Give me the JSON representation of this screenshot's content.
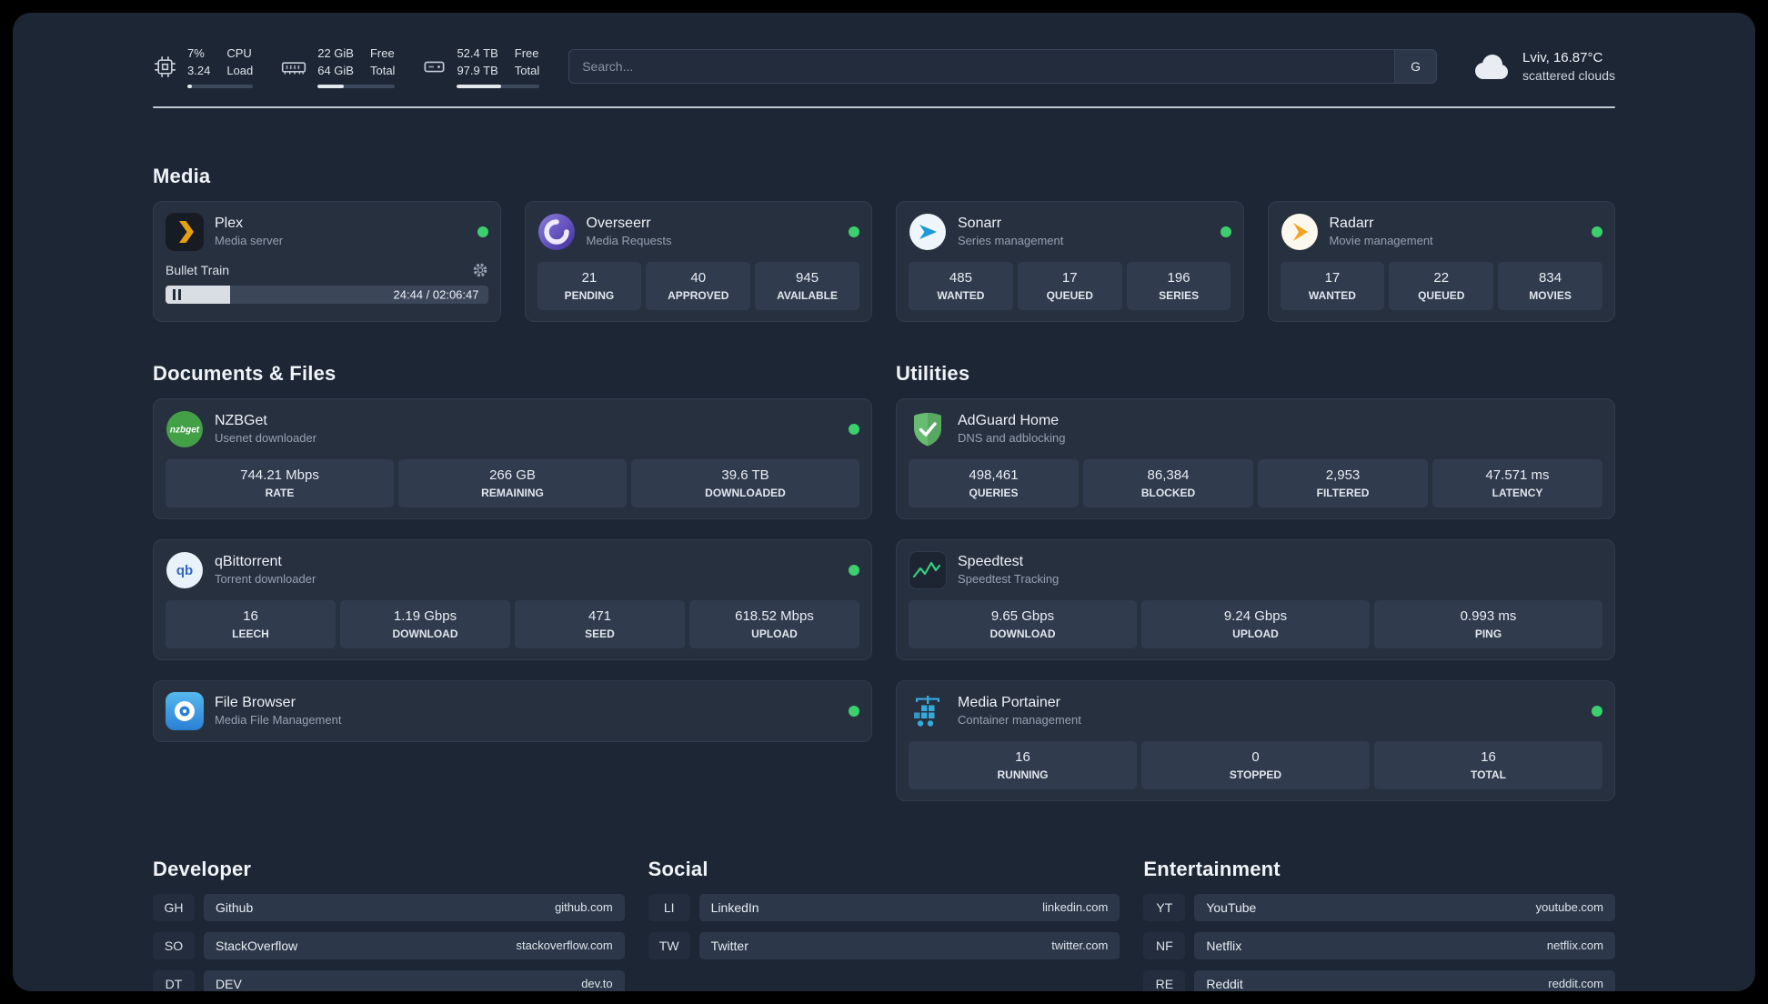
{
  "topbar": {
    "cpu": {
      "value_top": "7%",
      "value_bottom": "3.24",
      "label_top": "CPU",
      "label_bottom": "Load",
      "bar_percent": 7
    },
    "ram": {
      "value_top": "22 GiB",
      "value_bottom": "64 GiB",
      "label_top": "Free",
      "label_bottom": "Total",
      "bar_percent": 34
    },
    "disk": {
      "value_top": "52.4 TB",
      "value_bottom": "97.9 TB",
      "label_top": "Free",
      "label_bottom": "Total",
      "bar_percent": 53
    },
    "search": {
      "placeholder": "Search...",
      "engine_label": "G"
    },
    "weather": {
      "location": "Lviv, 16.87°C",
      "condition": "scattered clouds"
    }
  },
  "media": {
    "title": "Media",
    "plex": {
      "name": "Plex",
      "subtitle": "Media server",
      "now_playing": "Bullet Train",
      "time": "24:44 / 02:06:47",
      "progress_percent": 20
    },
    "overseerr": {
      "name": "Overseerr",
      "subtitle": "Media Requests",
      "stats": [
        {
          "value": "21",
          "label": "PENDING"
        },
        {
          "value": "40",
          "label": "APPROVED"
        },
        {
          "value": "945",
          "label": "AVAILABLE"
        }
      ]
    },
    "sonarr": {
      "name": "Sonarr",
      "subtitle": "Series management",
      "stats": [
        {
          "value": "485",
          "label": "WANTED"
        },
        {
          "value": "17",
          "label": "QUEUED"
        },
        {
          "value": "196",
          "label": "SERIES"
        }
      ]
    },
    "radarr": {
      "name": "Radarr",
      "subtitle": "Movie management",
      "stats": [
        {
          "value": "17",
          "label": "WANTED"
        },
        {
          "value": "22",
          "label": "QUEUED"
        },
        {
          "value": "834",
          "label": "MOVIES"
        }
      ]
    }
  },
  "documents": {
    "title": "Documents & Files",
    "nzbget": {
      "name": "NZBGet",
      "subtitle": "Usenet downloader",
      "stats": [
        {
          "value": "744.21 Mbps",
          "label": "RATE"
        },
        {
          "value": "266 GB",
          "label": "REMAINING"
        },
        {
          "value": "39.6 TB",
          "label": "DOWNLOADED"
        }
      ]
    },
    "qbittorrent": {
      "name": "qBittorrent",
      "subtitle": "Torrent downloader",
      "stats": [
        {
          "value": "16",
          "label": "LEECH"
        },
        {
          "value": "1.19 Gbps",
          "label": "DOWNLOAD"
        },
        {
          "value": "471",
          "label": "SEED"
        },
        {
          "value": "618.52 Mbps",
          "label": "UPLOAD"
        }
      ]
    },
    "filebrowser": {
      "name": "File Browser",
      "subtitle": "Media File Management"
    }
  },
  "utilities": {
    "title": "Utilities",
    "adguard": {
      "name": "AdGuard Home",
      "subtitle": "DNS and adblocking",
      "stats": [
        {
          "value": "498,461",
          "label": "QUERIES"
        },
        {
          "value": "86,384",
          "label": "BLOCKED"
        },
        {
          "value": "2,953",
          "label": "FILTERED"
        },
        {
          "value": "47.571 ms",
          "label": "LATENCY"
        }
      ]
    },
    "speedtest": {
      "name": "Speedtest",
      "subtitle": "Speedtest Tracking",
      "stats": [
        {
          "value": "9.65 Gbps",
          "label": "DOWNLOAD"
        },
        {
          "value": "9.24 Gbps",
          "label": "UPLOAD"
        },
        {
          "value": "0.993 ms",
          "label": "PING"
        }
      ]
    },
    "portainer": {
      "name": "Media Portainer",
      "subtitle": "Container management",
      "stats": [
        {
          "value": "16",
          "label": "RUNNING"
        },
        {
          "value": "0",
          "label": "STOPPED"
        },
        {
          "value": "16",
          "label": "TOTAL"
        }
      ]
    }
  },
  "bookmarks": [
    {
      "title": "Developer",
      "items": [
        {
          "abbr": "GH",
          "name": "Github",
          "url": "github.com"
        },
        {
          "abbr": "SO",
          "name": "StackOverflow",
          "url": "stackoverflow.com"
        },
        {
          "abbr": "DT",
          "name": "DEV",
          "url": "dev.to"
        }
      ]
    },
    {
      "title": "Social",
      "items": [
        {
          "abbr": "LI",
          "name": "LinkedIn",
          "url": "linkedin.com"
        },
        {
          "abbr": "TW",
          "name": "Twitter",
          "url": "twitter.com"
        }
      ]
    },
    {
      "title": "Entertainment",
      "items": [
        {
          "abbr": "YT",
          "name": "YouTube",
          "url": "youtube.com"
        },
        {
          "abbr": "NF",
          "name": "Netflix",
          "url": "netflix.com"
        },
        {
          "abbr": "RE",
          "name": "Reddit",
          "url": "reddit.com"
        }
      ]
    }
  ]
}
